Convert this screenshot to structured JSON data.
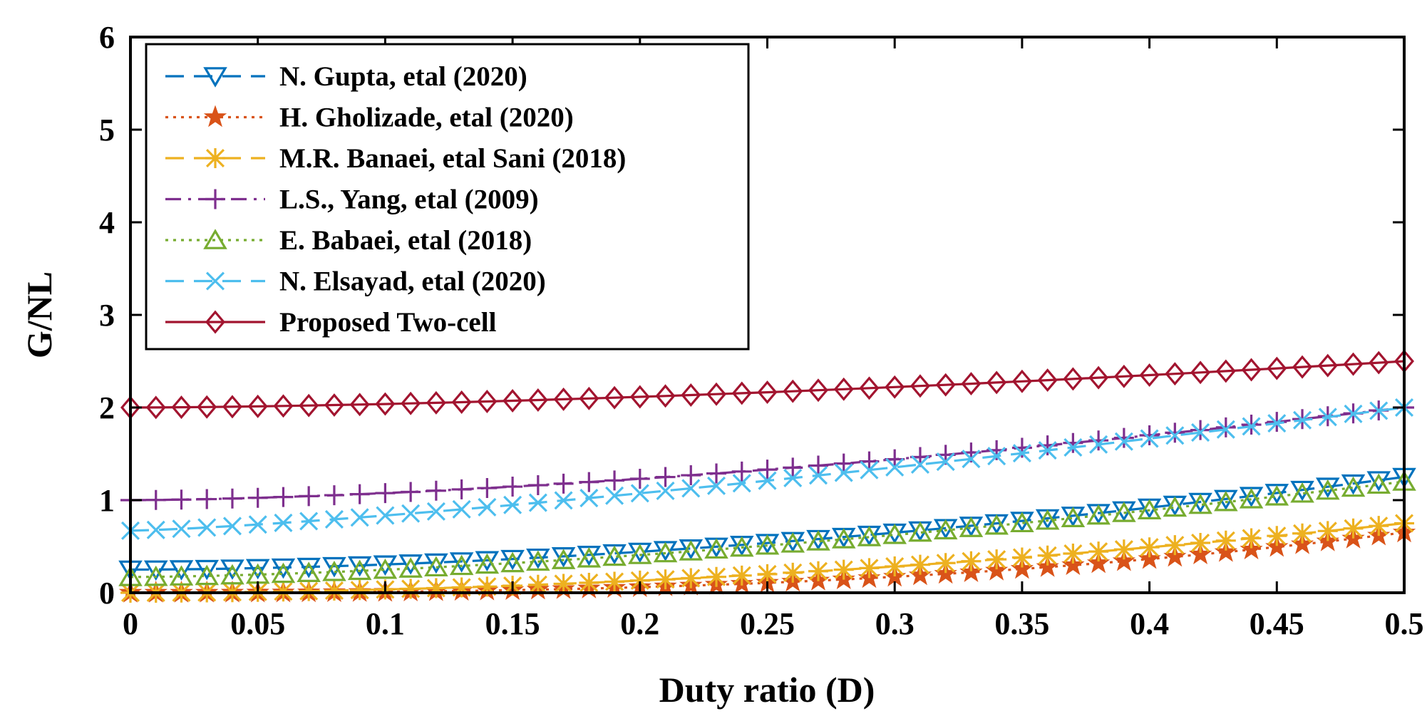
{
  "chart_data": {
    "type": "line",
    "xlabel": "Duty ratio (D)",
    "ylabel": "G/NL",
    "xlim": [
      0,
      0.5
    ],
    "ylim": [
      0,
      6
    ],
    "xticks": [
      0,
      0.05,
      0.1,
      0.15,
      0.2,
      0.25,
      0.3,
      0.35,
      0.4,
      0.45,
      0.5
    ],
    "yticks": [
      0,
      1,
      2,
      3,
      4,
      5,
      6
    ],
    "x_step": 0.01,
    "legend_position": "top-left",
    "grid": false,
    "series": [
      {
        "name": "N. Gupta, etal (2020)",
        "color": "#0072BD",
        "dash": "long-dash",
        "marker": "triangle-down",
        "start": 0.25,
        "end": 1.25,
        "curve": 1.8
      },
      {
        "name": "H. Gholizade, etal (2020)",
        "color": "#D95319",
        "dash": "dotted",
        "marker": "star",
        "start": 0.0,
        "end": 0.65,
        "curve": 2.6
      },
      {
        "name": "M.R. Banaei, etal Sani (2018)",
        "color": "#EDB120",
        "dash": "long-dash",
        "marker": "asterisk",
        "start": 0.0,
        "end": 0.75,
        "curve": 1.9
      },
      {
        "name": "L.S., Yang, etal (2009)",
        "color": "#7E2F8E",
        "dash": "dash-dot",
        "marker": "plus",
        "start": 1.0,
        "end": 2.0,
        "curve": 1.6
      },
      {
        "name": "E. Babaei, etal (2018)",
        "color": "#77AC30",
        "dash": "dotted",
        "marker": "triangle-up",
        "start": 0.17,
        "end": 1.2,
        "curve": 1.6
      },
      {
        "name": "N. Elsayad, etal (2020)",
        "color": "#4DBEEE",
        "dash": "long-dash",
        "marker": "x",
        "start": 0.67,
        "end": 2.0,
        "curve": 1.3
      },
      {
        "name": "Proposed Two-cell",
        "color": "#A2142F",
        "dash": "solid",
        "marker": "diamond",
        "start": 2.0,
        "end": 2.5,
        "curve": 1.6
      }
    ]
  }
}
